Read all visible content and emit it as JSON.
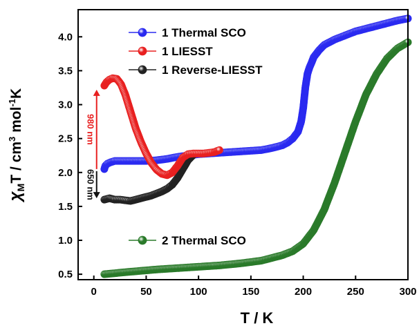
{
  "chart_data": {
    "type": "scatter",
    "xlabel": "T / K",
    "ylabel_parts": [
      "χ",
      "M",
      "T / cm",
      "3",
      " mol",
      "-1",
      "K"
    ],
    "xlim": [
      -15,
      300
    ],
    "ylim": [
      0.42,
      4.4
    ],
    "x_ticks": [
      0,
      50,
      100,
      150,
      200,
      250,
      300
    ],
    "x_tick_labels": [
      "0",
      "50",
      "100",
      "150",
      "200",
      "250",
      "300"
    ],
    "y_ticks": [
      0.5,
      1.0,
      1.5,
      2.0,
      2.5,
      3.0,
      3.5,
      4.0
    ],
    "y_tick_labels": [
      "0.5",
      "1.0",
      "1.5",
      "2.0",
      "2.5",
      "3.0",
      "3.5",
      "4.0"
    ],
    "grid": false,
    "legend_position": "top-center",
    "series": [
      {
        "name": "1 Thermal SCO",
        "color": "#2a2af0",
        "points": [
          [
            10,
            2.05
          ],
          [
            11,
            2.1
          ],
          [
            13,
            2.13
          ],
          [
            16,
            2.15
          ],
          [
            20,
            2.17
          ],
          [
            30,
            2.17
          ],
          [
            40,
            2.17
          ],
          [
            50,
            2.17
          ],
          [
            60,
            2.18
          ],
          [
            70,
            2.2
          ],
          [
            80,
            2.23
          ],
          [
            90,
            2.25
          ],
          [
            100,
            2.27
          ],
          [
            110,
            2.28
          ],
          [
            120,
            2.29
          ],
          [
            130,
            2.3
          ],
          [
            140,
            2.31
          ],
          [
            150,
            2.32
          ],
          [
            160,
            2.33
          ],
          [
            170,
            2.36
          ],
          [
            180,
            2.4
          ],
          [
            185,
            2.44
          ],
          [
            190,
            2.5
          ],
          [
            195,
            2.6
          ],
          [
            198,
            2.75
          ],
          [
            200,
            2.95
          ],
          [
            202,
            3.25
          ],
          [
            204,
            3.45
          ],
          [
            206,
            3.55
          ],
          [
            208,
            3.62
          ],
          [
            210,
            3.7
          ],
          [
            215,
            3.8
          ],
          [
            220,
            3.88
          ],
          [
            230,
            3.96
          ],
          [
            240,
            4.02
          ],
          [
            250,
            4.08
          ],
          [
            260,
            4.12
          ],
          [
            270,
            4.16
          ],
          [
            280,
            4.2
          ],
          [
            290,
            4.24
          ],
          [
            300,
            4.27
          ]
        ]
      },
      {
        "name": "1 LIESST",
        "color": "#e82020",
        "points": [
          [
            10,
            3.28
          ],
          [
            12,
            3.33
          ],
          [
            15,
            3.37
          ],
          [
            18,
            3.39
          ],
          [
            22,
            3.38
          ],
          [
            26,
            3.3
          ],
          [
            30,
            3.15
          ],
          [
            35,
            2.9
          ],
          [
            40,
            2.65
          ],
          [
            45,
            2.45
          ],
          [
            50,
            2.28
          ],
          [
            55,
            2.14
          ],
          [
            60,
            2.04
          ],
          [
            65,
            1.98
          ],
          [
            70,
            1.96
          ],
          [
            75,
            2.0
          ],
          [
            80,
            2.1
          ],
          [
            85,
            2.22
          ],
          [
            90,
            2.27
          ],
          [
            95,
            2.28
          ],
          [
            100,
            2.28
          ],
          [
            105,
            2.28
          ],
          [
            110,
            2.29
          ],
          [
            115,
            2.3
          ],
          [
            120,
            2.33
          ]
        ]
      },
      {
        "name": "1 Reverse-LIESST",
        "color": "#222222",
        "points": [
          [
            10,
            1.6
          ],
          [
            15,
            1.62
          ],
          [
            20,
            1.6
          ],
          [
            25,
            1.6
          ],
          [
            30,
            1.59
          ],
          [
            35,
            1.58
          ],
          [
            40,
            1.6
          ],
          [
            45,
            1.62
          ],
          [
            50,
            1.64
          ],
          [
            55,
            1.66
          ],
          [
            60,
            1.69
          ],
          [
            65,
            1.72
          ],
          [
            70,
            1.76
          ],
          [
            75,
            1.82
          ],
          [
            80,
            1.92
          ],
          [
            85,
            2.05
          ],
          [
            90,
            2.18
          ],
          [
            95,
            2.26
          ]
        ]
      },
      {
        "name": "2 Thermal SCO",
        "color": "#2a7a2a",
        "points": [
          [
            10,
            0.5
          ],
          [
            30,
            0.53
          ],
          [
            60,
            0.57
          ],
          [
            90,
            0.6
          ],
          [
            120,
            0.63
          ],
          [
            140,
            0.66
          ],
          [
            160,
            0.7
          ],
          [
            180,
            0.78
          ],
          [
            190,
            0.84
          ],
          [
            200,
            0.95
          ],
          [
            210,
            1.15
          ],
          [
            220,
            1.45
          ],
          [
            230,
            1.85
          ],
          [
            240,
            2.3
          ],
          [
            250,
            2.75
          ],
          [
            260,
            3.15
          ],
          [
            270,
            3.45
          ],
          [
            280,
            3.68
          ],
          [
            290,
            3.83
          ],
          [
            300,
            3.92
          ]
        ]
      }
    ],
    "annotations": [
      {
        "text": "980 nm",
        "color": "#e82020",
        "direction": "up",
        "x": 2,
        "y_from": 2.05,
        "y_to": 3.22
      },
      {
        "text": "650 nm",
        "color": "#111111",
        "direction": "down",
        "x": 2,
        "y_from": 2.02,
        "y_to": 1.62
      }
    ]
  }
}
